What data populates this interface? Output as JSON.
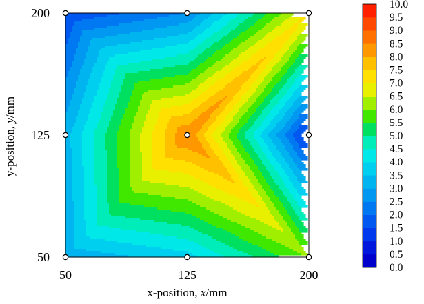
{
  "chart_data": {
    "type": "heatmap",
    "title": "",
    "xlabel": "x-position, x/mm",
    "ylabel": "y-position, y/mm",
    "xlabel_parts": {
      "prefix": "x-position, ",
      "symbol": "x",
      "suffix": "/mm"
    },
    "ylabel_parts": {
      "prefix": "y-position, ",
      "symbol": "y",
      "suffix": "/mm"
    },
    "xlim": [
      50,
      200
    ],
    "ylim": [
      50,
      200
    ],
    "x_ticks": [
      50,
      125,
      200
    ],
    "y_ticks": [
      50,
      125,
      200
    ],
    "x_tick_labels": [
      "50",
      "125",
      "200"
    ],
    "y_tick_labels": [
      "50",
      "125",
      "200"
    ],
    "grid": false,
    "legend": "colorbar-right",
    "measurement_points": [
      {
        "x": 50,
        "y": 50,
        "value": 3.1
      },
      {
        "x": 125,
        "y": 50,
        "value": 3.8
      },
      {
        "x": 200,
        "y": 50,
        "value": 6.0
      },
      {
        "x": 50,
        "y": 125,
        "value": 3.3
      },
      {
        "x": 125,
        "y": 125,
        "value": 8.5
      },
      {
        "x": 200,
        "y": 125,
        "value": 1.0
      },
      {
        "x": 50,
        "y": 200,
        "value": 1.5
      },
      {
        "x": 125,
        "y": 200,
        "value": 2.5
      },
      {
        "x": 200,
        "y": 200,
        "value": 7.0
      }
    ],
    "colorbar": {
      "min": 0.0,
      "max": 10.0,
      "step": 0.5,
      "tick_labels": [
        "0.0",
        "0.5",
        "1.0",
        "1.5",
        "2.0",
        "2.5",
        "3.0",
        "3.5",
        "4.0",
        "4.5",
        "5.0",
        "5.5",
        "6.0",
        "6.5",
        "7.0",
        "7.5",
        "8.0",
        "8.5",
        "9.0",
        "9.5",
        "10.0"
      ],
      "colors": [
        "#0000cc",
        "#0018dd",
        "#0038ee",
        "#0058f0",
        "#0078f2",
        "#0098f0",
        "#00b4f0",
        "#00cff0",
        "#00e8e8",
        "#00ecb8",
        "#00e060",
        "#40e800",
        "#a0ee00",
        "#e8f000",
        "#ffe000",
        "#ffc000",
        "#ff9800",
        "#ff7000",
        "#ff4800",
        "#ff2000"
      ]
    }
  }
}
